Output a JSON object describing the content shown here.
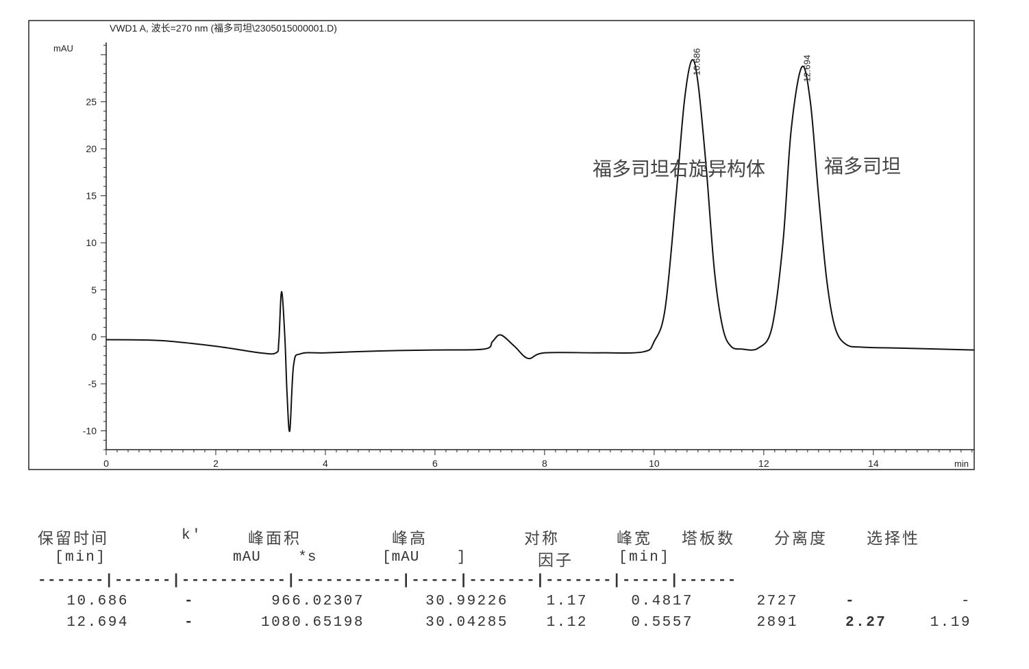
{
  "chart_data": {
    "type": "line",
    "title": "VWD1 A, 波长=270 nm (福多司坦\\2305015000001.D)",
    "xlabel": "min",
    "ylabel": "mAU",
    "xlim": [
      0,
      15.84
    ],
    "ylim": [
      -12,
      31.3
    ],
    "xticks": [
      0,
      2,
      4,
      6,
      8,
      10,
      12,
      14
    ],
    "yticks": [
      -10,
      -5,
      0,
      5,
      10,
      15,
      20,
      25
    ],
    "grid": false,
    "line_color": "#111111",
    "series": [
      {
        "x": [
          0,
          1,
          2,
          2.8,
          3.1,
          3.15,
          3.2,
          3.26,
          3.3,
          3.35,
          3.42,
          3.55,
          4,
          5,
          6,
          6.9,
          7.05,
          7.2,
          7.45,
          7.7,
          8.0,
          9,
          9.8,
          10.0,
          10.2,
          10.4,
          10.55,
          10.686,
          10.8,
          10.95,
          11.1,
          11.25,
          11.4,
          11.6,
          11.9,
          12.15,
          12.35,
          12.5,
          12.694,
          12.85,
          13.0,
          13.15,
          13.3,
          13.5,
          13.8,
          14.5,
          15.84
        ],
        "y": [
          -0.3,
          -0.4,
          -1.0,
          -1.7,
          -1.7,
          -0.5,
          4.8,
          0,
          -6,
          -10,
          -3,
          -1.8,
          -1.7,
          -1.5,
          -1.4,
          -1.3,
          -0.5,
          0.2,
          -1.0,
          -2.3,
          -1.7,
          -1.7,
          -1.6,
          -0.5,
          3,
          15,
          25,
          29.4,
          27,
          18,
          7,
          1,
          -1.0,
          -1.3,
          -1.2,
          1,
          10,
          22,
          28.7,
          25,
          15,
          6,
          1,
          -0.8,
          -1.1,
          -1.2,
          -1.4
        ]
      }
    ],
    "peak_labels": [
      {
        "x": 10.686,
        "y": 29.4,
        "text": "10.686"
      },
      {
        "x": 12.694,
        "y": 28.7,
        "text": "12.694"
      }
    ],
    "annotations": [
      {
        "text": "福多司坦右旋异构体"
      },
      {
        "text": "福多司坦"
      }
    ]
  },
  "table": {
    "headers": [
      "保留时间",
      "k'",
      "峰面积",
      "峰高",
      "对称",
      "峰宽",
      "塔板数",
      "分离度",
      "选择性"
    ],
    "units": [
      "[min]",
      "mAU    *s",
      "[mAU    ]",
      "因子",
      "[min]"
    ],
    "separator": "-------|------|-----------|-----------|-----|-------|-------|-----|------",
    "rows": [
      [
        "10.686",
        "-",
        "966.02307",
        "30.99226",
        "1.17",
        "0.4817",
        "2727",
        "-",
        "-"
      ],
      [
        "12.694",
        "-",
        "1080.65198",
        "30.04285",
        "1.12",
        "0.5557",
        "2891",
        "2.27",
        "1.19"
      ]
    ]
  }
}
